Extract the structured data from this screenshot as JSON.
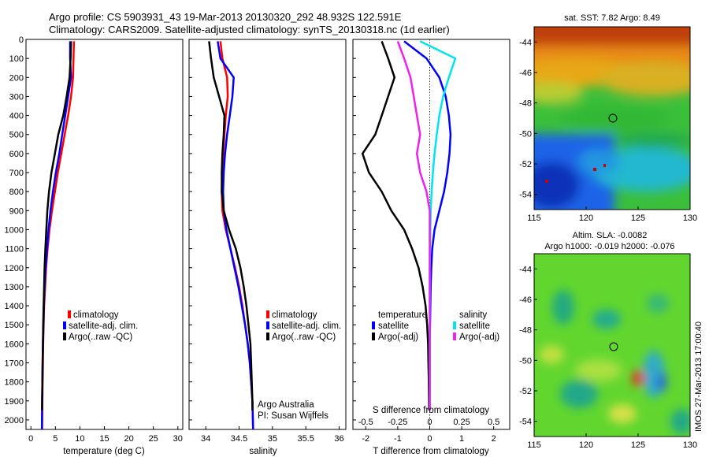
{
  "header": {
    "line1": "Argo profile: CS 5903931_43 19-Mar-2013 20130320_292 48.932S 122.591E",
    "line2": "Climatology: CARS2009. Satellite-adjusted climatology: synTS_20130318.nc (1d earlier)"
  },
  "colors": {
    "climatology": "#ff0000",
    "satellite": "#0000ff",
    "argo": "#000000",
    "satellite_salinity": "#00e5ee",
    "argo_salinity": "#ee22ee"
  },
  "chart_data": [
    {
      "type": "line",
      "panel": "temperature",
      "xlabel": "temperature (deg C)",
      "ylabel": "",
      "xlim": [
        -1,
        31
      ],
      "xticks": [
        0,
        5,
        10,
        15,
        20,
        25,
        30
      ],
      "ylim": [
        2050,
        0
      ],
      "yticks": [
        0,
        100,
        200,
        300,
        400,
        500,
        600,
        700,
        800,
        900,
        1000,
        1100,
        1200,
        1300,
        1400,
        1500,
        1600,
        1700,
        1800,
        1900,
        2000
      ],
      "legend_position": "lower-right",
      "legend": [
        "climatology",
        "satellite-adj. clim.",
        "Argo(..raw -QC)"
      ],
      "series": [
        {
          "name": "climatology",
          "color": "#ff0000",
          "x": [
            8.8,
            8.7,
            8.6,
            8.2,
            7.6,
            6.9,
            6.2,
            5.5,
            4.9,
            4.3,
            3.8,
            3.4,
            3.1,
            2.9,
            2.7,
            2.6,
            2.5,
            2.45,
            2.4,
            2.35,
            2.3
          ],
          "y": [
            10,
            100,
            200,
            300,
            400,
            500,
            600,
            700,
            800,
            900,
            1000,
            1100,
            1200,
            1300,
            1400,
            1500,
            1600,
            1700,
            1800,
            1900,
            2050
          ]
        },
        {
          "name": "satellite-adj. clim.",
          "color": "#0000ff",
          "x": [
            8.0,
            8.0,
            8.2,
            7.6,
            7.0,
            6.4,
            5.8,
            5.1,
            4.5,
            4.0,
            3.6,
            3.3,
            3.0,
            2.8,
            2.65,
            2.55,
            2.45,
            2.4,
            2.35,
            2.3,
            2.25
          ],
          "y": [
            10,
            100,
            200,
            300,
            400,
            500,
            600,
            700,
            800,
            900,
            1000,
            1100,
            1200,
            1300,
            1400,
            1500,
            1600,
            1700,
            1800,
            1900,
            2050
          ]
        },
        {
          "name": "Argo(..raw -QC)",
          "color": "#000000",
          "x": [
            8.2,
            8.1,
            7.9,
            7.3,
            6.6,
            5.6,
            4.9,
            4.2,
            3.7,
            3.35,
            3.15,
            2.95,
            2.8,
            2.7,
            2.6,
            2.5,
            2.45,
            2.4,
            2.35,
            2.3,
            2.28
          ],
          "y": [
            10,
            100,
            200,
            300,
            400,
            500,
            600,
            700,
            800,
            900,
            1000,
            1100,
            1200,
            1300,
            1400,
            1500,
            1600,
            1700,
            1800,
            1900,
            1950
          ]
        }
      ]
    },
    {
      "type": "line",
      "panel": "salinity",
      "xlabel": "salinity",
      "ylabel": "",
      "xlim": [
        33.75,
        36.1
      ],
      "xticks": [
        34,
        34.5,
        35,
        35.5,
        36
      ],
      "ylim": [
        2050,
        0
      ],
      "legend_position": "lower-right",
      "legend": [
        "climatology",
        "satellite-adj. clim.",
        "Argo(..raw -QC)"
      ],
      "annotation": [
        "Argo Australia",
        "PI: Susan Wijffels"
      ],
      "series": [
        {
          "name": "climatology",
          "color": "#ff0000",
          "x": [
            34.22,
            34.25,
            34.32,
            34.33,
            34.3,
            34.28,
            34.26,
            34.25,
            34.24,
            34.25,
            34.3,
            34.37,
            34.44,
            34.5,
            34.55,
            34.59,
            34.63,
            34.66,
            34.68,
            34.7,
            34.71
          ],
          "y": [
            10,
            100,
            200,
            300,
            400,
            500,
            600,
            700,
            800,
            900,
            1000,
            1100,
            1200,
            1300,
            1400,
            1500,
            1600,
            1700,
            1800,
            1900,
            2050
          ]
        },
        {
          "name": "satellite-adj. clim.",
          "color": "#0000ff",
          "x": [
            34.18,
            34.22,
            34.42,
            34.4,
            34.36,
            34.32,
            34.29,
            34.27,
            34.26,
            34.27,
            34.31,
            34.37,
            34.43,
            34.49,
            34.54,
            34.59,
            34.63,
            34.66,
            34.68,
            34.7,
            34.71
          ],
          "y": [
            10,
            100,
            200,
            300,
            400,
            500,
            600,
            700,
            800,
            900,
            1000,
            1100,
            1200,
            1300,
            1400,
            1500,
            1600,
            1700,
            1800,
            1900,
            2050
          ]
        },
        {
          "name": "Argo(..raw -QC)",
          "color": "#000000",
          "x": [
            34.05,
            34.08,
            34.12,
            34.2,
            34.28,
            34.27,
            34.25,
            34.24,
            34.24,
            34.27,
            34.35,
            34.45,
            34.52,
            34.57,
            34.61,
            34.64,
            34.67,
            34.68,
            34.69,
            34.7,
            34.7
          ],
          "y": [
            10,
            100,
            200,
            300,
            400,
            500,
            600,
            700,
            800,
            900,
            1000,
            1100,
            1200,
            1300,
            1400,
            1500,
            1600,
            1700,
            1800,
            1900,
            1950
          ]
        }
      ]
    },
    {
      "type": "line",
      "panel": "difference",
      "xlabel": "T difference from climatology",
      "xlabel2": "S difference from climatology",
      "xlim": [
        -2.4,
        2.5
      ],
      "xticks": [
        -2,
        -1,
        0,
        1,
        2
      ],
      "xticks2": [
        -0.5,
        -0.25,
        0,
        0.25,
        0.5
      ],
      "xticks2_labels": [
        "-0.5",
        "-0.25",
        "0",
        "0.25",
        "0.5"
      ],
      "ylim": [
        2050,
        0
      ],
      "legend_position": "lower-center",
      "legend_temperature_title": "temperature",
      "legend_salinity_title": "salinity",
      "legend": [
        "satellite",
        "Argo(-adj)",
        "satellite",
        "Argo(-adj)"
      ],
      "series": [
        {
          "name": "satellite",
          "group": "temperature",
          "color": "#0000ff",
          "x": [
            -0.8,
            -0.1,
            0.3,
            0.5,
            0.6,
            0.65,
            0.62,
            0.55,
            0.45,
            0.3,
            0.15,
            0.08,
            0.05,
            0.03,
            0.02,
            0.01,
            0.0,
            0.0,
            0.0,
            0.0
          ],
          "y": [
            10,
            100,
            200,
            300,
            400,
            500,
            600,
            700,
            800,
            900,
            1000,
            1100,
            1200,
            1300,
            1400,
            1500,
            1600,
            1700,
            1800,
            1950
          ]
        },
        {
          "name": "Argo(-adj)",
          "group": "temperature",
          "color": "#000000",
          "x": [
            -1.5,
            -1.3,
            -1.1,
            -1.3,
            -1.5,
            -1.7,
            -2.1,
            -1.9,
            -1.5,
            -1.2,
            -0.8,
            -0.55,
            -0.35,
            -0.22,
            -0.13,
            -0.08,
            -0.05,
            -0.04,
            -0.03,
            -0.02
          ],
          "y": [
            10,
            100,
            200,
            300,
            400,
            500,
            600,
            700,
            800,
            900,
            1000,
            1100,
            1200,
            1300,
            1400,
            1500,
            1600,
            1700,
            1800,
            1950
          ]
        },
        {
          "name": "satellite",
          "group": "salinity",
          "color": "#00e5ee",
          "x": [
            -0.3,
            0.8,
            0.6,
            0.42,
            0.3,
            0.22,
            0.15,
            0.1,
            0.06,
            0.03,
            0.02,
            0.01,
            0.0,
            0.0,
            0.0,
            0.0,
            0.0,
            0.0,
            0.0,
            0.0
          ],
          "y": [
            10,
            100,
            200,
            300,
            400,
            500,
            600,
            700,
            800,
            900,
            1000,
            1100,
            1200,
            1300,
            1400,
            1500,
            1600,
            1700,
            1800,
            1950
          ]
        },
        {
          "name": "Argo(-adj)",
          "group": "salinity",
          "color": "#ee22ee",
          "x": [
            -1.0,
            -0.8,
            -0.6,
            -0.5,
            -0.4,
            -0.3,
            -0.4,
            -0.3,
            -0.1,
            0.0,
            0.0,
            0.0,
            0.0,
            0.0,
            0.0,
            0.0,
            0.0,
            0.0,
            0.0,
            0.0
          ],
          "y": [
            10,
            100,
            200,
            300,
            400,
            500,
            600,
            700,
            800,
            900,
            1000,
            1100,
            1200,
            1300,
            1400,
            1500,
            1600,
            1700,
            1800,
            1950
          ]
        }
      ]
    },
    {
      "type": "heatmap",
      "panel": "sst-map",
      "title": "sat. SST: 7.82  Argo: 8.49",
      "xticks": [
        115,
        120,
        125,
        130
      ],
      "yticks_labels": [
        "-44",
        "-46",
        "-48",
        "-50",
        "-52",
        "-54"
      ],
      "xlim": [
        115,
        130
      ],
      "ylim": [
        -55,
        -43
      ]
    },
    {
      "type": "heatmap",
      "panel": "sla-map",
      "title": "Altim. SLA: -0.0082",
      "title2": "Argo h1000: -0.019 h2000: -0.076",
      "xticks": [
        115,
        120,
        125,
        130
      ],
      "yticks_labels": [
        "-44",
        "-46",
        "-48",
        "-50",
        "-52",
        "-54"
      ],
      "xlim": [
        115,
        130
      ],
      "ylim": [
        -55,
        -43
      ]
    }
  ],
  "side_label": "IMOS 27-Mar-2013 17:00:40"
}
